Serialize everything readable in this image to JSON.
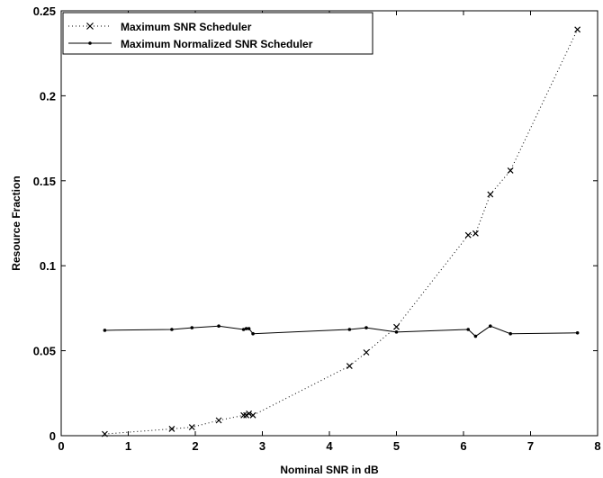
{
  "chart_data": {
    "type": "line",
    "xlabel": "Nominal SNR in dB",
    "ylabel": "Resource Fraction",
    "xlim": [
      0,
      8
    ],
    "ylim": [
      0,
      0.25
    ],
    "xticks": [
      "0",
      "1",
      "2",
      "3",
      "4",
      "5",
      "6",
      "7",
      "8"
    ],
    "yticks": [
      "0",
      "0.05",
      "0.1",
      "0.15",
      "0.2",
      "0.25"
    ],
    "grid": false,
    "legend_position": "top-left",
    "series": [
      {
        "name": "Maximum SNR Scheduler",
        "line_style": "dotted",
        "marker": "x",
        "x": [
          0.65,
          1.65,
          1.95,
          2.35,
          2.72,
          2.76,
          2.8,
          2.86,
          4.3,
          4.55,
          5.0,
          6.07,
          6.18,
          6.4,
          6.7,
          7.7
        ],
        "y": [
          0.001,
          0.004,
          0.005,
          0.009,
          0.012,
          0.012,
          0.013,
          0.012,
          0.041,
          0.049,
          0.064,
          0.118,
          0.119,
          0.142,
          0.156,
          0.239
        ]
      },
      {
        "name": "Maximum Normalized SNR Scheduler",
        "line_style": "solid",
        "marker": "dot",
        "x": [
          0.65,
          1.65,
          1.95,
          2.35,
          2.72,
          2.76,
          2.8,
          2.86,
          4.3,
          4.55,
          5.0,
          6.07,
          6.18,
          6.4,
          6.7,
          7.7
        ],
        "y": [
          0.062,
          0.0625,
          0.0635,
          0.0645,
          0.0625,
          0.063,
          0.063,
          0.06,
          0.0625,
          0.0635,
          0.061,
          0.0625,
          0.0585,
          0.0645,
          0.06,
          0.0605
        ]
      }
    ]
  }
}
